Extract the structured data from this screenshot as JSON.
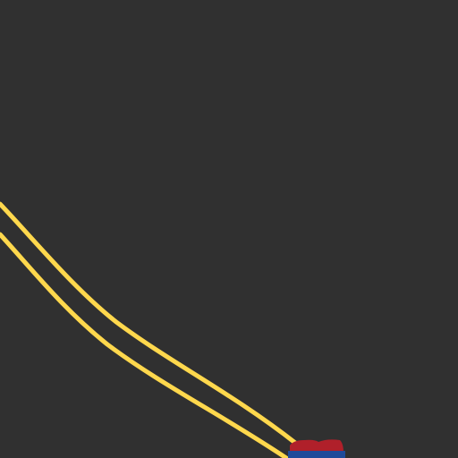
{
  "map": {
    "background_color": "#303030",
    "road": {
      "type": "interstate-highway",
      "lanes": 2,
      "line_color": "#ffd84d"
    },
    "shield": {
      "icon": "interstate-shield-icon",
      "top_color": "#b0202a",
      "bottom_color": "#1f4a9a",
      "label": ""
    }
  }
}
